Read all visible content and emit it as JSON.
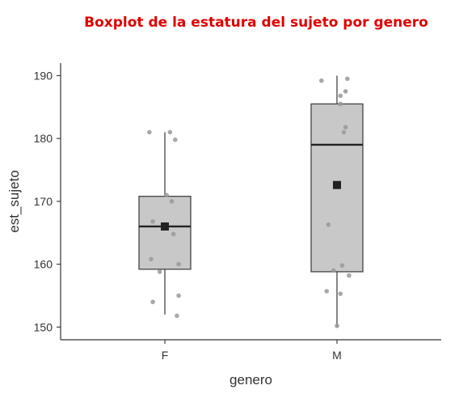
{
  "chart_data": {
    "type": "boxplot",
    "title": "Boxplot de la estatura del sujeto por genero",
    "xlabel": "genero",
    "ylabel": "est_sujeto",
    "categories": [
      "F",
      "M"
    ],
    "ylim": [
      148,
      191
    ],
    "yticks": [
      150,
      160,
      170,
      180,
      190
    ],
    "grid": false,
    "colors": {
      "title": "#e00000",
      "box_fill": "#c8c8c8",
      "box_stroke": "#444444",
      "median": "#222222",
      "mean_marker": "#222222",
      "points": "#999999",
      "axis": "#333333"
    },
    "boxes": [
      {
        "category": "F",
        "whisker_low": 152,
        "q1": 159.2,
        "median": 166,
        "q3": 170.8,
        "whisker_high": 181,
        "mean": 166
      },
      {
        "category": "M",
        "whisker_low": 150,
        "q1": 158.8,
        "median": 179,
        "q3": 185.5,
        "whisker_high": 190,
        "mean": 172.6
      }
    ],
    "points": [
      {
        "category": "F",
        "jitter": -0.09,
        "y": 181
      },
      {
        "category": "F",
        "jitter": 0.03,
        "y": 181
      },
      {
        "category": "F",
        "jitter": 0.06,
        "y": 179.8
      },
      {
        "category": "F",
        "jitter": 0.01,
        "y": 171
      },
      {
        "category": "F",
        "jitter": 0.04,
        "y": 170
      },
      {
        "category": "F",
        "jitter": -0.07,
        "y": 166.8
      },
      {
        "category": "F",
        "jitter": 0.05,
        "y": 164.8
      },
      {
        "category": "F",
        "jitter": -0.08,
        "y": 160.8
      },
      {
        "category": "F",
        "jitter": 0.08,
        "y": 160
      },
      {
        "category": "F",
        "jitter": -0.03,
        "y": 158.8
      },
      {
        "category": "F",
        "jitter": 0.08,
        "y": 155
      },
      {
        "category": "F",
        "jitter": -0.07,
        "y": 154
      },
      {
        "category": "F",
        "jitter": 0.07,
        "y": 151.8
      },
      {
        "category": "M",
        "jitter": 0.06,
        "y": 189.5
      },
      {
        "category": "M",
        "jitter": -0.09,
        "y": 189.2
      },
      {
        "category": "M",
        "jitter": 0.05,
        "y": 187.5
      },
      {
        "category": "M",
        "jitter": 0.02,
        "y": 186.8
      },
      {
        "category": "M",
        "jitter": 0.02,
        "y": 185.5
      },
      {
        "category": "M",
        "jitter": 0.05,
        "y": 181.8
      },
      {
        "category": "M",
        "jitter": 0.04,
        "y": 181
      },
      {
        "category": "M",
        "jitter": -0.05,
        "y": 166.3
      },
      {
        "category": "M",
        "jitter": 0.03,
        "y": 159.8
      },
      {
        "category": "M",
        "jitter": -0.02,
        "y": 159
      },
      {
        "category": "M",
        "jitter": 0.07,
        "y": 158.2
      },
      {
        "category": "M",
        "jitter": -0.06,
        "y": 155.7
      },
      {
        "category": "M",
        "jitter": 0.02,
        "y": 155.3
      },
      {
        "category": "M",
        "jitter": 0.0,
        "y": 150.2
      }
    ]
  }
}
